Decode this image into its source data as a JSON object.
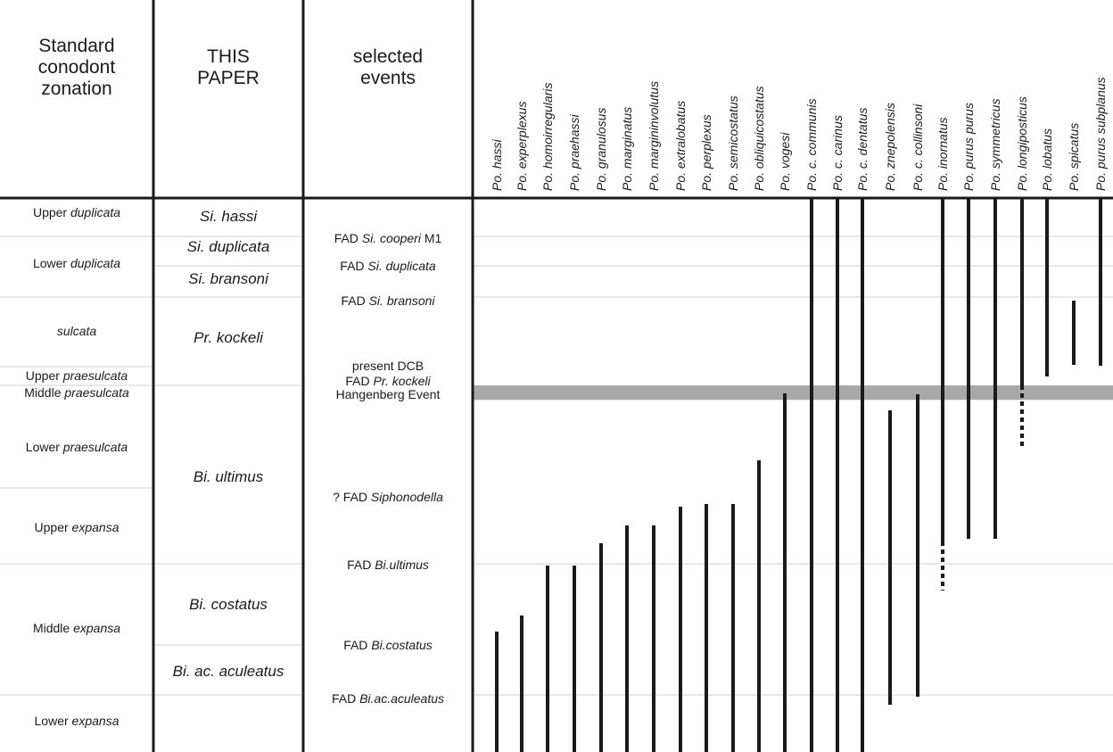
{
  "headers": {
    "zonation": [
      "Standard",
      "conodont",
      "zonation"
    ],
    "paper": [
      "THIS",
      "PAPER"
    ],
    "events": [
      "selected",
      "events"
    ]
  },
  "colors": {
    "line": "#1a1a1a",
    "grid": "#cfcfcf",
    "band": "#a8a8a8"
  },
  "chart_data": {
    "type": "range-chart",
    "standard_zones": [
      {
        "prefix": "Upper ",
        "name": "duplicata"
      },
      {
        "prefix": "Lower ",
        "name": "duplicata"
      },
      {
        "prefix": "",
        "name": "sulcata"
      },
      {
        "prefix": "Upper ",
        "name": "praesulcata"
      },
      {
        "prefix": "Middle ",
        "name": "praesulcata"
      },
      {
        "prefix": "Lower ",
        "name": "praesulcata"
      },
      {
        "prefix": "Upper ",
        "name": "expansa"
      },
      {
        "prefix": "Middle ",
        "name": "expansa"
      },
      {
        "prefix": "Lower ",
        "name": "expansa"
      }
    ],
    "this_paper_zones": [
      "Si. hassi",
      "Si. duplicata",
      "Si. bransoni",
      "Pr. kockeli",
      "Bi. ultimus",
      "Bi. costatus",
      "Bi. ac. aculeatus"
    ],
    "events": [
      {
        "prefix": "FAD ",
        "italic": "Si. cooperi",
        "suffix": " M1"
      },
      {
        "prefix": "FAD ",
        "italic": "Si. duplicata",
        "suffix": ""
      },
      {
        "prefix": "FAD ",
        "italic": "Si. bransoni",
        "suffix": ""
      },
      {
        "prefix": "present DCB",
        "italic": "",
        "suffix": ""
      },
      {
        "prefix": "FAD ",
        "italic": "Pr. kockeli",
        "suffix": ""
      },
      {
        "prefix": "Hangenberg Event",
        "italic": "",
        "suffix": ""
      },
      {
        "prefix": "? FAD ",
        "italic": "Siphonodella",
        "suffix": ""
      },
      {
        "prefix": "FAD ",
        "italic": "Bi.ultimus",
        "suffix": ""
      },
      {
        "prefix": "FAD ",
        "italic": "Bi.costatus",
        "suffix": ""
      },
      {
        "prefix": "FAD ",
        "italic": "Bi.ac.aculeatus",
        "suffix": ""
      }
    ],
    "species": [
      {
        "name": "Po. hassi",
        "base": 0.875,
        "top": 1.0
      },
      {
        "name": "Po. experplexus",
        "base": 0.851,
        "top": 1.0
      },
      {
        "name": "Po. homoirregularis",
        "base": 0.491,
        "top": 1.0
      },
      {
        "name": "Po. praehassi",
        "base": 0.491,
        "top": 1.0
      },
      {
        "name": "Po. granulosus",
        "base": 0.39,
        "top": 1.0
      },
      {
        "name": "Po. marginatus",
        "base": 0.185,
        "top": 1.0
      },
      {
        "name": "Po. margininvolutus",
        "base": 0.185,
        "top": 1.0
      },
      {
        "name": "Po. extralobatus",
        "base": 0.975,
        "top": 1.0
      },
      {
        "name": "Po. perplexus",
        "base": 0.958,
        "top": 1.0
      },
      {
        "name": "Po. semicostatus",
        "base": 0.958,
        "top": 1.0
      },
      {
        "name": "Po. obliquicostatus",
        "base": 0.635,
        "top": 1.0
      },
      {
        "name": "Po. vogesi",
        "base": 0.0,
        "top": 1.0
      },
      {
        "name": "Po. c. communis",
        "base": 0.0,
        "top": 8.0
      },
      {
        "name": "Po. c. carinus",
        "base": 0.0,
        "top": 8.0
      },
      {
        "name": "Po. c. dentatus",
        "base": 0.0,
        "top": 8.0
      },
      {
        "name": "Po. znepolensis",
        "base": 0.0,
        "top": 0.667
      },
      {
        "name": "Po. c. collinsoni",
        "base": 0.0,
        "top": 0.0
      },
      {
        "name": "Po. inornatus",
        "base": 0.0,
        "top": 8.0,
        "dashed": [
          0.385,
          0.0
        ]
      },
      {
        "name": "Po. purus purus",
        "base": 0.0,
        "top": 8.0
      },
      {
        "name": "Po. symmetricus",
        "base": 0.0,
        "top": 8.0
      },
      {
        "name": "Po. longiposticus",
        "base": 0.0,
        "top": 8.0,
        "dashed": [
          0.0,
          0.525
        ]
      },
      {
        "name": "Po. lobatus",
        "base": 0.0,
        "top": 8.0
      },
      {
        "name": "Po. spicatus",
        "base": 0.0,
        "top": 1.0
      },
      {
        "name": "Po. purus subplanus",
        "base": 0.0,
        "top": 8.0
      }
    ]
  }
}
